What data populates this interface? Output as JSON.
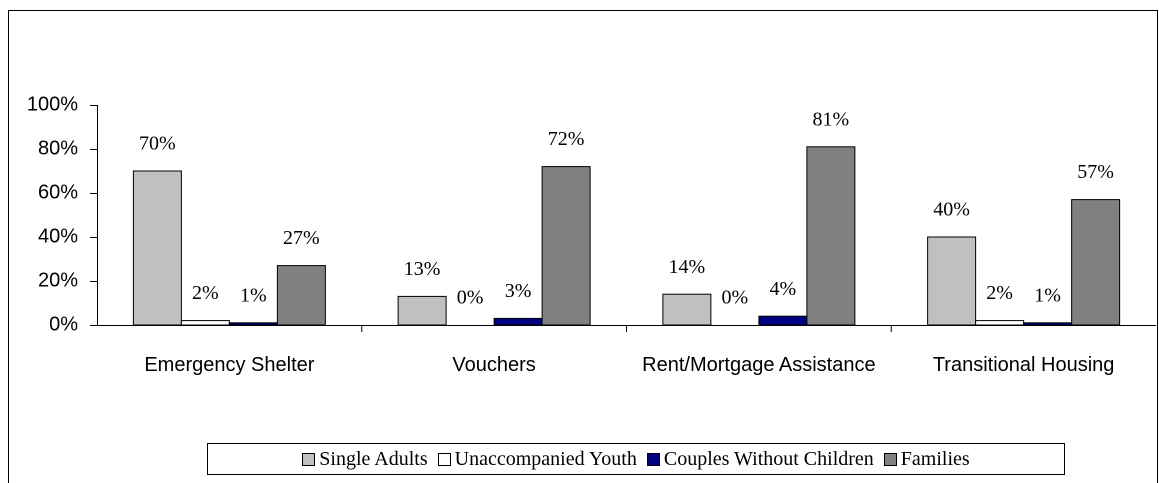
{
  "chart_data": {
    "type": "bar",
    "categories": [
      "Emergency Shelter",
      "Vouchers",
      "Rent/Mortgage Assistance",
      "Transitional Housing"
    ],
    "series": [
      {
        "name": "Single Adults",
        "color": "#c0c0c0",
        "values": [
          70,
          13,
          14,
          40
        ],
        "value_labels": [
          "70%",
          "13%",
          "14%",
          "40%"
        ]
      },
      {
        "name": "Unaccompanied Youth",
        "color": "#ffffff",
        "values": [
          2,
          0,
          0,
          2
        ],
        "value_labels": [
          "2%",
          "0%",
          "0%",
          "2%"
        ]
      },
      {
        "name": "Couples Without Children",
        "color": "#000080",
        "values": [
          1,
          3,
          4,
          1
        ],
        "value_labels": [
          "1%",
          "3%",
          "4%",
          "1%"
        ]
      },
      {
        "name": "Families",
        "color": "#808080",
        "values": [
          27,
          72,
          81,
          57
        ],
        "value_labels": [
          "27%",
          "72%",
          "81%",
          "57%"
        ]
      }
    ],
    "ylim": [
      0,
      100
    ],
    "yticks": [
      {
        "value": 0,
        "label": "0%"
      },
      {
        "value": 20,
        "label": "20%"
      },
      {
        "value": 40,
        "label": "40%"
      },
      {
        "value": 60,
        "label": "60%"
      },
      {
        "value": 80,
        "label": "80%"
      },
      {
        "value": 100,
        "label": "100%"
      }
    ],
    "grid": false,
    "legend": "bottom"
  }
}
